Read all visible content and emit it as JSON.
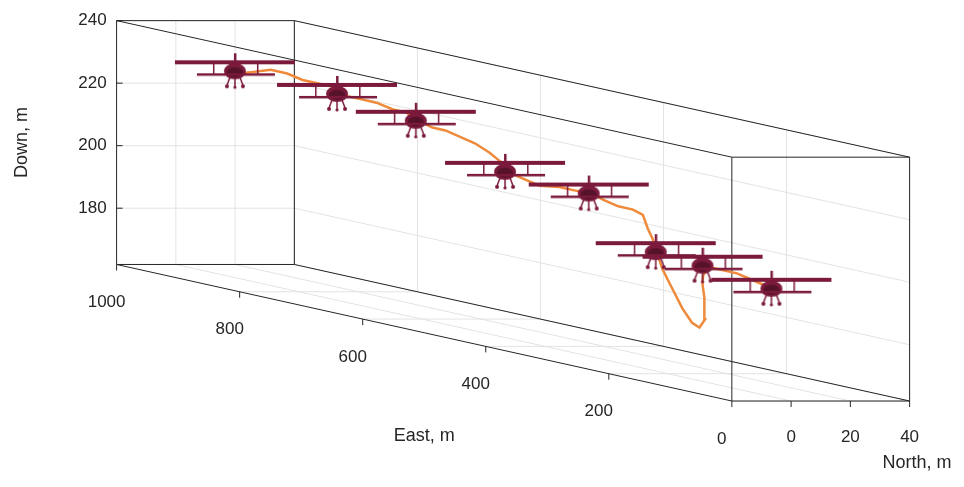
{
  "chart_data": {
    "type": "line3d",
    "xlabel": "East, m",
    "ylabel": "North, m",
    "zlabel": "Down, m",
    "xlim": [
      0,
      1000
    ],
    "xticks": [
      0,
      200,
      400,
      600,
      800,
      1000
    ],
    "ylim": [
      -20,
      40
    ],
    "yticks": [
      0,
      20,
      40
    ],
    "zlim": [
      162,
      240
    ],
    "zticks": [
      180,
      200,
      220,
      240
    ],
    "grid": true,
    "trajectory": {
      "color": "#ef8a3b",
      "east": [
        907,
        875,
        846,
        819,
        794,
        770,
        746,
        722,
        698,
        674,
        647,
        626,
        602,
        583,
        562,
        538,
        514,
        490,
        473,
        457,
        433,
        409,
        377,
        345,
        321,
        305,
        281,
        257,
        241,
        233,
        225,
        220,
        209,
        193,
        177,
        161,
        149,
        140,
        141,
        144,
        143,
        133,
        112,
        88,
        64,
        40,
        27
      ],
      "north": [
        0,
        0,
        0,
        0,
        0,
        0,
        0,
        0,
        0,
        0,
        0,
        0,
        0,
        0,
        0,
        0,
        0,
        0,
        0,
        0,
        0,
        0,
        0,
        0,
        0,
        0,
        0,
        0,
        0,
        0,
        0,
        0,
        0,
        0,
        0,
        0,
        0,
        0,
        0,
        0,
        0,
        0,
        0,
        0,
        0,
        0,
        0
      ],
      "down": [
        227,
        229,
        231,
        231,
        230,
        230,
        230,
        228,
        228,
        228,
        227,
        227,
        225,
        224,
        224,
        223,
        222,
        220,
        218,
        215,
        214,
        213,
        214,
        214,
        214,
        213,
        212,
        212,
        211,
        207,
        204,
        201,
        195,
        189.5,
        184,
        180,
        179,
        182,
        189,
        193,
        196,
        199,
        199,
        199,
        198,
        197,
        196
      ]
    },
    "aircraft": {
      "color": "#7b1a3c",
      "marker": "airplane",
      "east": [
        904,
        738,
        610,
        465,
        329,
        220,
        144,
        32
      ],
      "north": [
        0,
        0,
        0,
        0,
        0,
        0,
        0,
        0
      ],
      "down": [
        228,
        228,
        225,
        215,
        214,
        200,
        199,
        196.5
      ]
    }
  }
}
